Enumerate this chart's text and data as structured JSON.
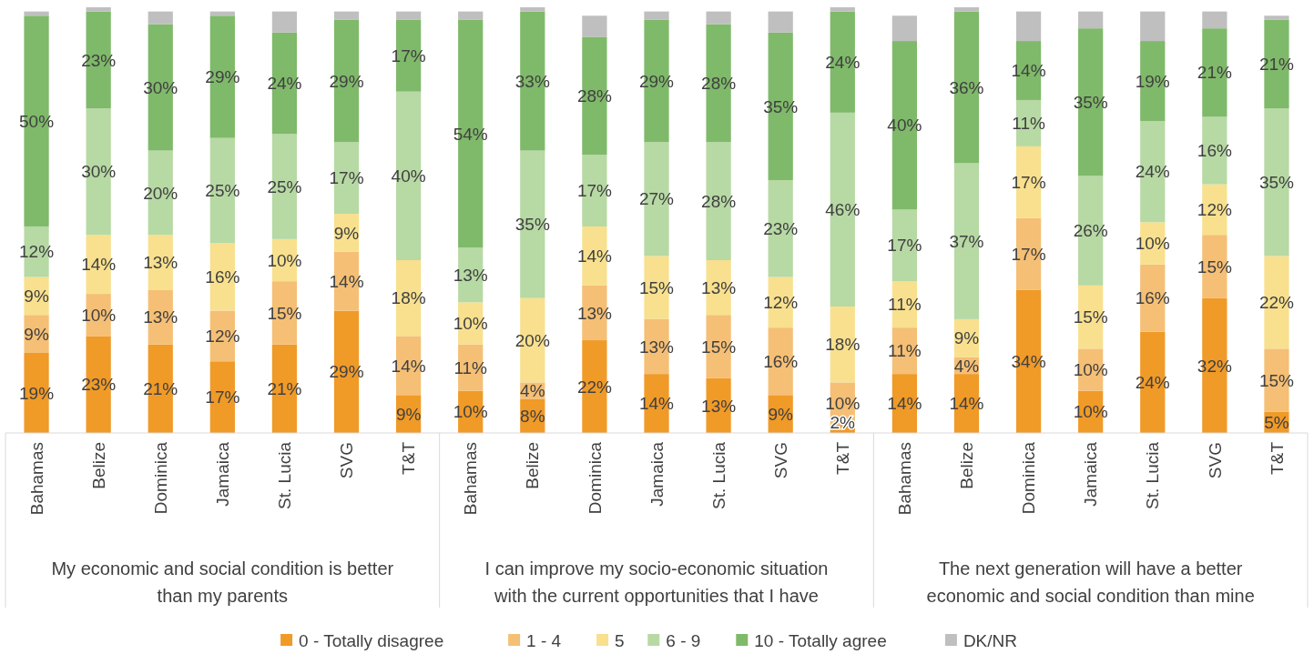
{
  "chart_data": {
    "type": "bar",
    "stacked": true,
    "legend": "bottom",
    "categories": [
      "Bahamas",
      "Belize",
      "Dominica",
      "Jamaica",
      "St. Lucia",
      "SVG",
      "T&T",
      "Bahamas",
      "Belize",
      "Dominica",
      "Jamaica",
      "St. Lucia",
      "SVG",
      "T&T",
      "Bahamas",
      "Belize",
      "Dominica",
      "Jamaica",
      "St. Lucia",
      "SVG",
      "T&T"
    ],
    "annotations": [
      "My economic and social condition is better than my parents",
      "I can improve my socio-economic situation with the current opportunities that I have",
      "The next generation will have a better economic and social condition than mine"
    ],
    "series": [
      {
        "name": "0 - Totally disagree",
        "color": "#f09a28",
        "values": [
          19,
          23,
          21,
          17,
          21,
          29,
          9,
          10,
          8,
          22,
          14,
          13,
          9,
          2,
          14,
          14,
          34,
          10,
          24,
          32,
          5
        ],
        "value_labels": [
          "19%",
          "23%",
          "21%",
          "17%",
          "21%",
          "29%",
          "9%",
          "10%",
          "8%",
          "22%",
          "14%",
          "13%",
          "9%",
          "2%",
          "14%",
          "14%",
          "34%",
          "10%",
          "24%",
          "32%",
          "5%"
        ]
      },
      {
        "name": "1 - 4",
        "color": "#f5bf75",
        "values": [
          9,
          10,
          13,
          12,
          15,
          14,
          14,
          11,
          4,
          13,
          13,
          15,
          16,
          10,
          11,
          4,
          17,
          10,
          16,
          15,
          15
        ],
        "value_labels": [
          "9%",
          "10%",
          "13%",
          "12%",
          "15%",
          "14%",
          "14%",
          "11%",
          "4%",
          "13%",
          "13%",
          "15%",
          "16%",
          "10%",
          "11%",
          "4%",
          "17%",
          "10%",
          "16%",
          "15%",
          "15%"
        ]
      },
      {
        "name": "5",
        "color": "#f8e08e",
        "values": [
          9,
          14,
          13,
          16,
          10,
          9,
          18,
          10,
          20,
          14,
          15,
          13,
          12,
          18,
          11,
          9,
          17,
          15,
          10,
          12,
          22
        ],
        "value_labels": [
          "9%",
          "14%",
          "13%",
          "16%",
          "10%",
          "9%",
          "18%",
          "10%",
          "20%",
          "14%",
          "15%",
          "13%",
          "12%",
          "18%",
          "11%",
          "9%",
          "17%",
          "15%",
          "10%",
          "12%",
          "22%"
        ]
      },
      {
        "name": "6 - 9",
        "color": "#b7d9a4",
        "values": [
          12,
          30,
          20,
          25,
          25,
          17,
          40,
          13,
          35,
          17,
          27,
          28,
          23,
          46,
          17,
          37,
          11,
          26,
          24,
          16,
          35
        ],
        "value_labels": [
          "12%",
          "30%",
          "20%",
          "25%",
          "25%",
          "17%",
          "40%",
          "13%",
          "35%",
          "17%",
          "27%",
          "28%",
          "23%",
          "46%",
          "17%",
          "37%",
          "11%",
          "26%",
          "24%",
          "16%",
          "35%"
        ]
      },
      {
        "name": "10 - Totally agree",
        "color": "#7fb96a",
        "values": [
          50,
          23,
          30,
          29,
          24,
          29,
          17,
          54,
          33,
          28,
          29,
          28,
          35,
          24,
          40,
          36,
          14,
          35,
          19,
          21,
          21
        ],
        "value_labels": [
          "50%",
          "23%",
          "30%",
          "29%",
          "24%",
          "29%",
          "17%",
          "54%",
          "33%",
          "28%",
          "29%",
          "28%",
          "35%",
          "24%",
          "40%",
          "36%",
          "14%",
          "35%",
          "19%",
          "21%",
          "21%"
        ]
      },
      {
        "name": "DK/NR",
        "color": "#bfbfbf",
        "values": [
          1,
          1,
          3,
          1,
          5,
          2,
          2,
          2,
          1,
          5,
          2,
          3,
          5,
          1,
          6,
          1,
          7,
          4,
          7,
          4,
          1
        ],
        "value_labels": [
          null,
          null,
          null,
          null,
          null,
          null,
          null,
          null,
          null,
          null,
          null,
          null,
          null,
          null,
          null,
          null,
          null,
          null,
          null,
          null,
          null
        ]
      }
    ]
  }
}
